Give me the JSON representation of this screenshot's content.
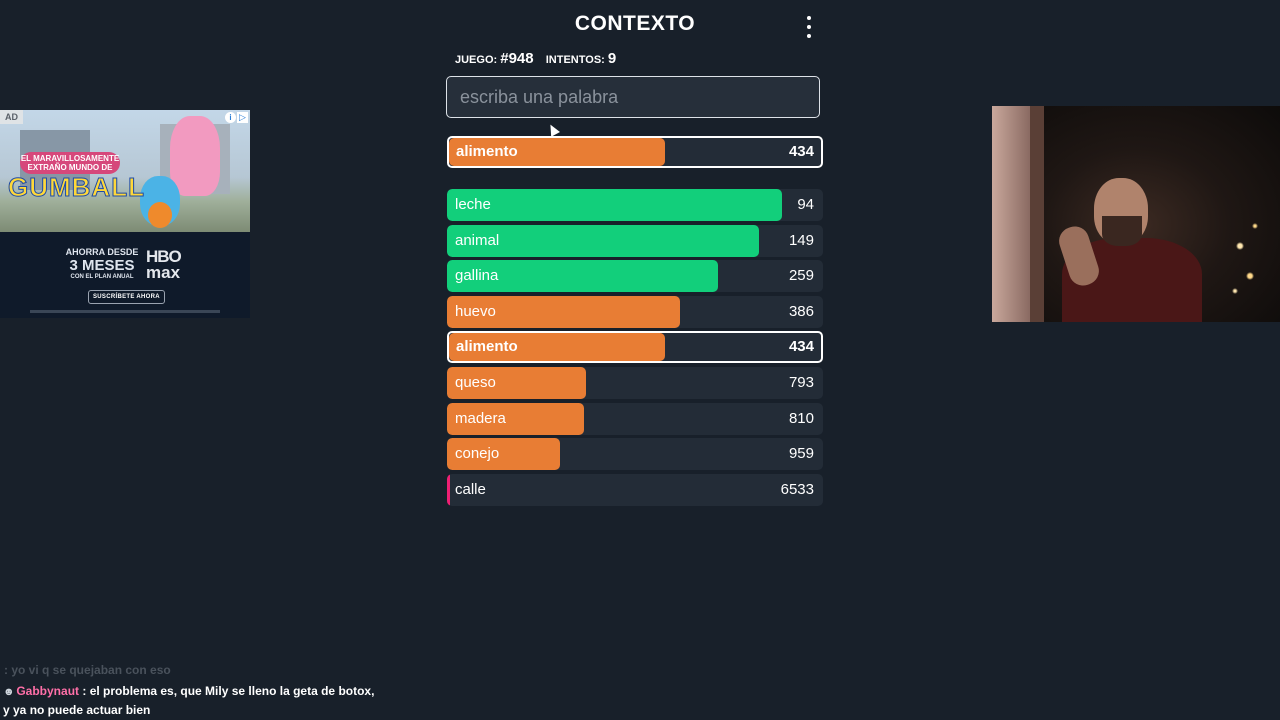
{
  "header": {
    "title": "CONTEXTO"
  },
  "game_info": {
    "game_label": "JUEGO:",
    "game_number": "#948",
    "attempts_label": "INTENTOS:",
    "attempts": "9"
  },
  "search": {
    "placeholder": "escriba una palabra",
    "value": ""
  },
  "last_guess": {
    "word": "alimento",
    "distance": "434",
    "color": "#e87d34",
    "fill": 0.58
  },
  "guesses": [
    {
      "word": "leche",
      "distance": "94",
      "color": "#12cf7b",
      "fill": 0.89
    },
    {
      "word": "animal",
      "distance": "149",
      "color": "#12cf7b",
      "fill": 0.83
    },
    {
      "word": "gallina",
      "distance": "259",
      "color": "#12cf7b",
      "fill": 0.72
    },
    {
      "word": "huevo",
      "distance": "386",
      "color": "#e87d34",
      "fill": 0.62
    },
    {
      "word": "alimento",
      "distance": "434",
      "color": "#e87d34",
      "fill": 0.58,
      "selected": true
    },
    {
      "word": "queso",
      "distance": "793",
      "color": "#e87d34",
      "fill": 0.37
    },
    {
      "word": "madera",
      "distance": "810",
      "color": "#e87d34",
      "fill": 0.365
    },
    {
      "word": "conejo",
      "distance": "959",
      "color": "#e87d34",
      "fill": 0.3
    },
    {
      "word": "calle",
      "distance": "6533",
      "color": "#ef1f73",
      "fill": 0.008
    }
  ],
  "ad": {
    "badge": "AD",
    "headline_top": "EL MARAVILLOSAMENTE EXTRAÑO MUNDO DE",
    "headline_brand": "GUMBALL",
    "promo_line1": "AHORRA DESDE",
    "promo_line2": "3 MESES",
    "promo_line3": "CON EL PLAN ANUAL",
    "brand_line1": "HBO",
    "brand_line2": "max",
    "cta": "SUSCRÍBETE AHORA"
  },
  "chat": {
    "faded_message": ": yo vi q se quejaban con eso",
    "user": "Gabbynaut",
    "message": ": el problema es, que Mily se lleno la geta de botox, y ya no puede actuar bien",
    "user_color": "#ff6fa8"
  }
}
